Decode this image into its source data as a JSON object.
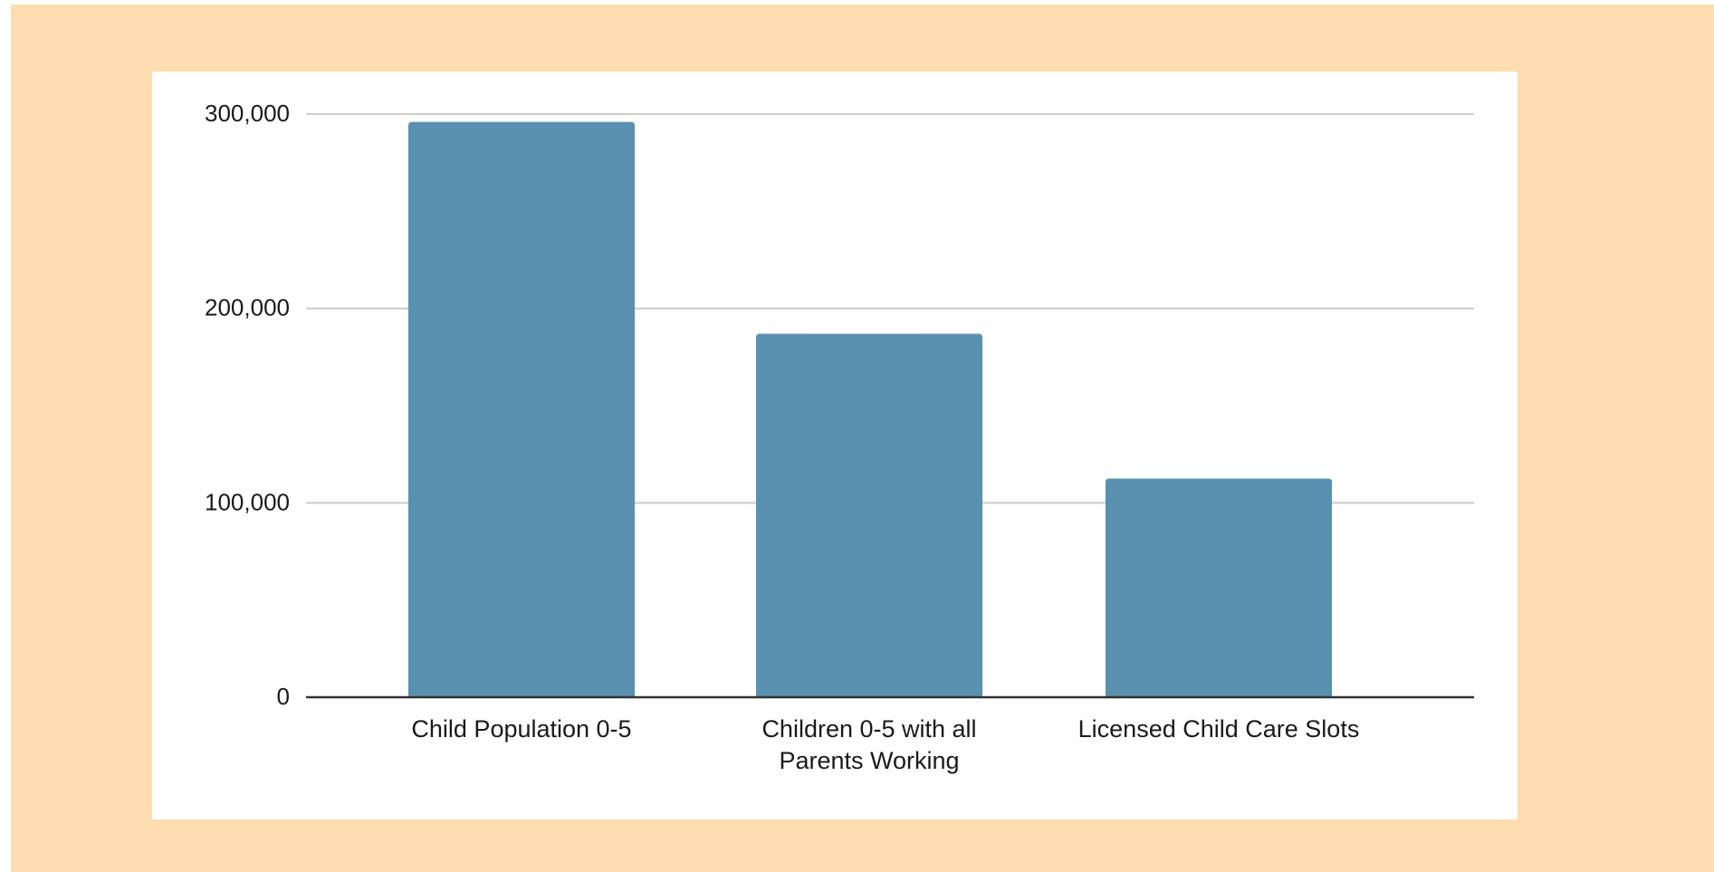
{
  "chart_data": {
    "type": "bar",
    "title": "",
    "xlabel": "",
    "ylabel": "",
    "categories": [
      [
        "Child Population 0-5"
      ],
      [
        "Children 0-5 with all",
        "Parents Working"
      ],
      [
        "Licensed Child Care Slots"
      ]
    ],
    "values": [
      296000,
      187000,
      112500
    ],
    "ylim": [
      0,
      300000
    ],
    "yticks": [
      0,
      100000,
      200000,
      300000
    ],
    "ytick_labels": [
      "0",
      "100,000",
      "200,000",
      "300,000"
    ],
    "grid": true,
    "legend": "none",
    "colors": {
      "bar": "#5990af",
      "gridline": "#cccccc",
      "axis": "#333333",
      "page_background": "#fddcaf",
      "plot_background": "#ffffff"
    }
  }
}
